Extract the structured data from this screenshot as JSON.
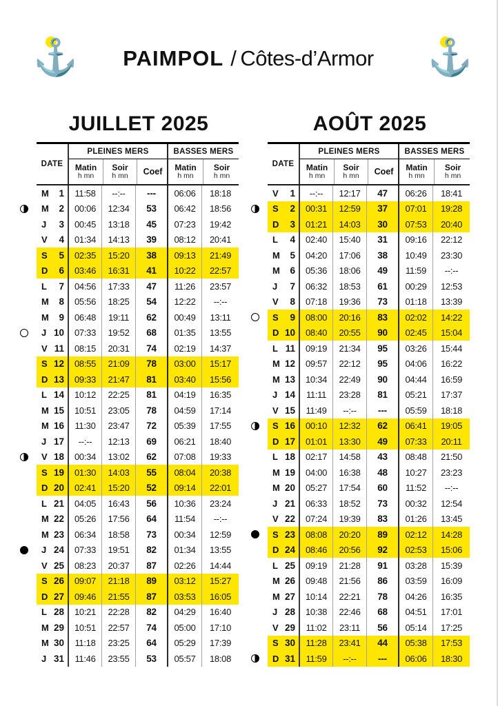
{
  "header": {
    "title_main": "PAIMPOL",
    "title_sep": "/",
    "title_sub": "Côtes-d’Armor",
    "anchor_icon": "⚓"
  },
  "colors": {
    "highlight_yellow": "#FFE600",
    "anchor_yellow": "#FFE600",
    "ink": "#111111"
  },
  "icons": {
    "anchor": "⚓",
    "moon_quarter": "◑",
    "moon_full": "○",
    "moon_new": "●"
  },
  "table_header": {
    "date": "DATE",
    "pleines": "PLEINES MERS",
    "basses": "BASSES MERS",
    "matin": "Matin",
    "soir": "Soir",
    "hmn": "h mn",
    "coef": "Coef"
  },
  "months": [
    {
      "title": "JUILLET 2025",
      "rows": [
        {
          "day": "M",
          "num": "1",
          "pm_m": "11:58",
          "pm_s": "--:--",
          "coef": "---",
          "bm_m": "06:06",
          "bm_s": "18:18"
        },
        {
          "day": "M",
          "num": "2",
          "pm_m": "00:06",
          "pm_s": "12:34",
          "coef": "53",
          "bm_m": "06:42",
          "bm_s": "18:56",
          "moon": "quarter"
        },
        {
          "day": "J",
          "num": "3",
          "pm_m": "00:45",
          "pm_s": "13:18",
          "coef": "45",
          "bm_m": "07:23",
          "bm_s": "19:42"
        },
        {
          "day": "V",
          "num": "4",
          "pm_m": "01:34",
          "pm_s": "14:13",
          "coef": "39",
          "bm_m": "08:12",
          "bm_s": "20:41"
        },
        {
          "day": "S",
          "num": "5",
          "pm_m": "02:35",
          "pm_s": "15:20",
          "coef": "38",
          "bm_m": "09:13",
          "bm_s": "21:49",
          "hl": true
        },
        {
          "day": "D",
          "num": "6",
          "pm_m": "03:46",
          "pm_s": "16:31",
          "coef": "41",
          "bm_m": "10:22",
          "bm_s": "22:57",
          "hl": true
        },
        {
          "day": "L",
          "num": "7",
          "pm_m": "04:56",
          "pm_s": "17:33",
          "coef": "47",
          "bm_m": "11:26",
          "bm_s": "23:57"
        },
        {
          "day": "M",
          "num": "8",
          "pm_m": "05:56",
          "pm_s": "18:25",
          "coef": "54",
          "bm_m": "12:22",
          "bm_s": "--:--"
        },
        {
          "day": "M",
          "num": "9",
          "pm_m": "06:48",
          "pm_s": "19:11",
          "coef": "62",
          "bm_m": "00:49",
          "bm_s": "13:11"
        },
        {
          "day": "J",
          "num": "10",
          "pm_m": "07:33",
          "pm_s": "19:52",
          "coef": "68",
          "bm_m": "01:35",
          "bm_s": "13:55",
          "moon": "full"
        },
        {
          "day": "V",
          "num": "11",
          "pm_m": "08:15",
          "pm_s": "20:31",
          "coef": "74",
          "bm_m": "02:19",
          "bm_s": "14:37"
        },
        {
          "day": "S",
          "num": "12",
          "pm_m": "08:55",
          "pm_s": "21:09",
          "coef": "78",
          "bm_m": "03:00",
          "bm_s": "15:17",
          "hl": true
        },
        {
          "day": "D",
          "num": "13",
          "pm_m": "09:33",
          "pm_s": "21:47",
          "coef": "81",
          "bm_m": "03:40",
          "bm_s": "15:56",
          "hl": true
        },
        {
          "day": "L",
          "num": "14",
          "pm_m": "10:12",
          "pm_s": "22:25",
          "coef": "81",
          "bm_m": "04:19",
          "bm_s": "16:35"
        },
        {
          "day": "M",
          "num": "15",
          "pm_m": "10:51",
          "pm_s": "23:05",
          "coef": "78",
          "bm_m": "04:59",
          "bm_s": "17:14"
        },
        {
          "day": "M",
          "num": "16",
          "pm_m": "11:30",
          "pm_s": "23:47",
          "coef": "72",
          "bm_m": "05:39",
          "bm_s": "17:55"
        },
        {
          "day": "J",
          "num": "17",
          "pm_m": "--:--",
          "pm_s": "12:13",
          "coef": "69",
          "bm_m": "06:21",
          "bm_s": "18:40"
        },
        {
          "day": "V",
          "num": "18",
          "pm_m": "00:34",
          "pm_s": "13:02",
          "coef": "62",
          "bm_m": "07:08",
          "bm_s": "19:33",
          "moon": "quarter"
        },
        {
          "day": "S",
          "num": "19",
          "pm_m": "01:30",
          "pm_s": "14:03",
          "coef": "55",
          "bm_m": "08:04",
          "bm_s": "20:38",
          "hl": true
        },
        {
          "day": "D",
          "num": "20",
          "pm_m": "02:41",
          "pm_s": "15:20",
          "coef": "52",
          "bm_m": "09:14",
          "bm_s": "22:01",
          "hl": true
        },
        {
          "day": "L",
          "num": "21",
          "pm_m": "04:05",
          "pm_s": "16:43",
          "coef": "56",
          "bm_m": "10:36",
          "bm_s": "23:24"
        },
        {
          "day": "M",
          "num": "22",
          "pm_m": "05:26",
          "pm_s": "17:56",
          "coef": "64",
          "bm_m": "11:54",
          "bm_s": "--:--"
        },
        {
          "day": "M",
          "num": "23",
          "pm_m": "06:34",
          "pm_s": "18:58",
          "coef": "73",
          "bm_m": "00:34",
          "bm_s": "12:59"
        },
        {
          "day": "J",
          "num": "24",
          "pm_m": "07:33",
          "pm_s": "19:51",
          "coef": "82",
          "bm_m": "01:34",
          "bm_s": "13:55",
          "moon": "new"
        },
        {
          "day": "V",
          "num": "25",
          "pm_m": "08:23",
          "pm_s": "20:37",
          "coef": "87",
          "bm_m": "02:26",
          "bm_s": "14:44"
        },
        {
          "day": "S",
          "num": "26",
          "pm_m": "09:07",
          "pm_s": "21:18",
          "coef": "89",
          "bm_m": "03:12",
          "bm_s": "15:27",
          "hl": true
        },
        {
          "day": "D",
          "num": "27",
          "pm_m": "09:46",
          "pm_s": "21:55",
          "coef": "87",
          "bm_m": "03:53",
          "bm_s": "16:05",
          "hl": true
        },
        {
          "day": "L",
          "num": "28",
          "pm_m": "10:21",
          "pm_s": "22:28",
          "coef": "82",
          "bm_m": "04:29",
          "bm_s": "16:40"
        },
        {
          "day": "M",
          "num": "29",
          "pm_m": "10:51",
          "pm_s": "22:57",
          "coef": "74",
          "bm_m": "05:00",
          "bm_s": "17:10"
        },
        {
          "day": "M",
          "num": "30",
          "pm_m": "11:18",
          "pm_s": "23:25",
          "coef": "64",
          "bm_m": "05:29",
          "bm_s": "17:39"
        },
        {
          "day": "J",
          "num": "31",
          "pm_m": "11:46",
          "pm_s": "23:55",
          "coef": "53",
          "bm_m": "05:57",
          "bm_s": "18:08"
        }
      ]
    },
    {
      "title": "AOÛT 2025",
      "rows": [
        {
          "day": "V",
          "num": "1",
          "pm_m": "--:--",
          "pm_s": "12:17",
          "coef": "47",
          "bm_m": "06:26",
          "bm_s": "18:41"
        },
        {
          "day": "S",
          "num": "2",
          "pm_m": "00:31",
          "pm_s": "12:59",
          "coef": "37",
          "bm_m": "07:01",
          "bm_s": "19:28",
          "hl": true,
          "moon": "quarter"
        },
        {
          "day": "D",
          "num": "3",
          "pm_m": "01:21",
          "pm_s": "14:03",
          "coef": "30",
          "bm_m": "07:53",
          "bm_s": "20:40",
          "hl": true
        },
        {
          "day": "L",
          "num": "4",
          "pm_m": "02:40",
          "pm_s": "15:40",
          "coef": "31",
          "bm_m": "09:16",
          "bm_s": "22:12"
        },
        {
          "day": "M",
          "num": "5",
          "pm_m": "04:20",
          "pm_s": "17:06",
          "coef": "38",
          "bm_m": "10:49",
          "bm_s": "23:30"
        },
        {
          "day": "M",
          "num": "6",
          "pm_m": "05:36",
          "pm_s": "18:06",
          "coef": "49",
          "bm_m": "11:59",
          "bm_s": "--:--"
        },
        {
          "day": "J",
          "num": "7",
          "pm_m": "06:32",
          "pm_s": "18:53",
          "coef": "61",
          "bm_m": "00:29",
          "bm_s": "12:53"
        },
        {
          "day": "V",
          "num": "8",
          "pm_m": "07:18",
          "pm_s": "19:36",
          "coef": "73",
          "bm_m": "01:18",
          "bm_s": "13:39"
        },
        {
          "day": "S",
          "num": "9",
          "pm_m": "08:00",
          "pm_s": "20:16",
          "coef": "83",
          "bm_m": "02:02",
          "bm_s": "14:22",
          "hl": true,
          "moon": "full"
        },
        {
          "day": "D",
          "num": "10",
          "pm_m": "08:40",
          "pm_s": "20:55",
          "coef": "90",
          "bm_m": "02:45",
          "bm_s": "15:04",
          "hl": true
        },
        {
          "day": "L",
          "num": "11",
          "pm_m": "09:19",
          "pm_s": "21:34",
          "coef": "95",
          "bm_m": "03:26",
          "bm_s": "15:44"
        },
        {
          "day": "M",
          "num": "12",
          "pm_m": "09:57",
          "pm_s": "22:12",
          "coef": "95",
          "bm_m": "04:06",
          "bm_s": "16:22"
        },
        {
          "day": "M",
          "num": "13",
          "pm_m": "10:34",
          "pm_s": "22:49",
          "coef": "90",
          "bm_m": "04:44",
          "bm_s": "16:59"
        },
        {
          "day": "J",
          "num": "14",
          "pm_m": "11:11",
          "pm_s": "23:28",
          "coef": "81",
          "bm_m": "05:21",
          "bm_s": "17:37"
        },
        {
          "day": "V",
          "num": "15",
          "pm_m": "11:49",
          "pm_s": "--:--",
          "coef": "---",
          "bm_m": "05:59",
          "bm_s": "18:18"
        },
        {
          "day": "S",
          "num": "16",
          "pm_m": "00:10",
          "pm_s": "12:32",
          "coef": "62",
          "bm_m": "06:41",
          "bm_s": "19:05",
          "hl": true,
          "moon": "quarter"
        },
        {
          "day": "D",
          "num": "17",
          "pm_m": "01:01",
          "pm_s": "13:30",
          "coef": "49",
          "bm_m": "07:33",
          "bm_s": "20:11",
          "hl": true
        },
        {
          "day": "L",
          "num": "18",
          "pm_m": "02:17",
          "pm_s": "14:58",
          "coef": "43",
          "bm_m": "08:48",
          "bm_s": "21:50"
        },
        {
          "day": "M",
          "num": "19",
          "pm_m": "04:00",
          "pm_s": "16:38",
          "coef": "48",
          "bm_m": "10:27",
          "bm_s": "23:23"
        },
        {
          "day": "M",
          "num": "20",
          "pm_m": "05:27",
          "pm_s": "17:54",
          "coef": "60",
          "bm_m": "11:52",
          "bm_s": "--:--"
        },
        {
          "day": "J",
          "num": "21",
          "pm_m": "06:33",
          "pm_s": "18:52",
          "coef": "73",
          "bm_m": "00:32",
          "bm_s": "12:54"
        },
        {
          "day": "V",
          "num": "22",
          "pm_m": "07:24",
          "pm_s": "19:39",
          "coef": "83",
          "bm_m": "01:26",
          "bm_s": "13:45"
        },
        {
          "day": "S",
          "num": "23",
          "pm_m": "08:08",
          "pm_s": "20:20",
          "coef": "89",
          "bm_m": "02:12",
          "bm_s": "14:28",
          "hl": true,
          "moon": "new"
        },
        {
          "day": "D",
          "num": "24",
          "pm_m": "08:46",
          "pm_s": "20:56",
          "coef": "92",
          "bm_m": "02:53",
          "bm_s": "15:06",
          "hl": true
        },
        {
          "day": "L",
          "num": "25",
          "pm_m": "09:19",
          "pm_s": "21:28",
          "coef": "91",
          "bm_m": "03:28",
          "bm_s": "15:39"
        },
        {
          "day": "M",
          "num": "26",
          "pm_m": "09:48",
          "pm_s": "21:56",
          "coef": "86",
          "bm_m": "03:59",
          "bm_s": "16:09"
        },
        {
          "day": "M",
          "num": "27",
          "pm_m": "10:14",
          "pm_s": "22:21",
          "coef": "78",
          "bm_m": "04:26",
          "bm_s": "16:35"
        },
        {
          "day": "J",
          "num": "28",
          "pm_m": "10:38",
          "pm_s": "22:46",
          "coef": "68",
          "bm_m": "04:51",
          "bm_s": "17:01"
        },
        {
          "day": "V",
          "num": "29",
          "pm_m": "11:02",
          "pm_s": "23:11",
          "coef": "56",
          "bm_m": "05:14",
          "bm_s": "17:25"
        },
        {
          "day": "S",
          "num": "30",
          "pm_m": "11:28",
          "pm_s": "23:41",
          "coef": "44",
          "bm_m": "05:38",
          "bm_s": "17:53",
          "hl": true
        },
        {
          "day": "D",
          "num": "31",
          "pm_m": "11:59",
          "pm_s": "--:--",
          "coef": "---",
          "bm_m": "06:06",
          "bm_s": "18:30",
          "hl": true,
          "moon": "quarter"
        }
      ]
    }
  ]
}
